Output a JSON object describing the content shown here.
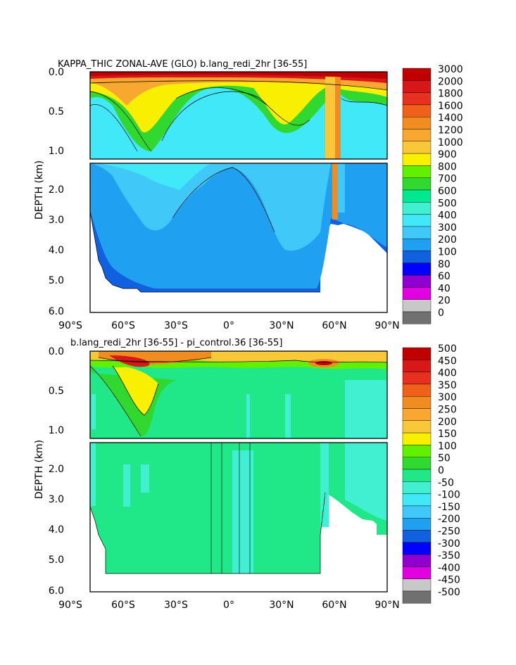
{
  "chart_data": [
    {
      "type": "heatmap",
      "title": "KAPPA_THIC ZONAL-AVE (GLO) b.lang_redi_2hr [36-55]",
      "ylabel": "DEPTH (km)",
      "x_ticks": [
        "90°S",
        "60°S",
        "30°S",
        "0°",
        "30°N",
        "60°N",
        "90°N"
      ],
      "y_ticks_upper": [
        "0.0",
        "0.5",
        "1.0"
      ],
      "y_ticks_lower": [
        "2.0",
        "3.0",
        "4.0",
        "5.0",
        "6.0"
      ],
      "xlim": [
        -90,
        90
      ],
      "ylim": [
        0,
        6
      ],
      "y_break_km": 1.1,
      "colorbar": {
        "labels": [
          "3000",
          "2000",
          "1800",
          "1600",
          "1400",
          "1200",
          "1000",
          "900",
          "800",
          "700",
          "600",
          "500",
          "400",
          "300",
          "200",
          "100",
          "80",
          "60",
          "40",
          "20",
          "0"
        ],
        "colors": [
          "#c00000",
          "#d81818",
          "#e83020",
          "#f06018",
          "#f08c20",
          "#f8a830",
          "#f8c838",
          "#f8f000",
          "#60f000",
          "#30d830",
          "#00e890",
          "#40f0d0",
          "#40e8f8",
          "#40c8f8",
          "#20a0f0",
          "#1060e0",
          "#0000ff",
          "#9000d0",
          "#e000e0",
          "#c8c8c8",
          "#707070"
        ]
      }
    },
    {
      "type": "heatmap",
      "title": "b.lang_redi_2hr [36-55] - pi_control.36 [36-55]",
      "ylabel": "DEPTH (km)",
      "x_ticks": [
        "90°S",
        "60°S",
        "30°S",
        "0°",
        "30°N",
        "60°N",
        "90°N"
      ],
      "y_ticks_upper": [
        "0.0",
        "0.5",
        "1.0"
      ],
      "y_ticks_lower": [
        "2.0",
        "3.0",
        "4.0",
        "5.0",
        "6.0"
      ],
      "xlim": [
        -90,
        90
      ],
      "ylim": [
        0,
        6
      ],
      "y_break_km": 1.1,
      "colorbar": {
        "labels": [
          "500",
          "450",
          "400",
          "350",
          "300",
          "250",
          "200",
          "150",
          "100",
          "50",
          "0",
          "-50",
          "-100",
          "-150",
          "-200",
          "-250",
          "-300",
          "-350",
          "-400",
          "-450",
          "-500"
        ],
        "colors": [
          "#c00000",
          "#d81818",
          "#e83020",
          "#f06018",
          "#f08c20",
          "#f8a830",
          "#f8c838",
          "#f8f000",
          "#60f000",
          "#30d830",
          "#20e888",
          "#40f0d0",
          "#40e8f8",
          "#40c8f8",
          "#20a0f0",
          "#1060e0",
          "#0000ff",
          "#9000d0",
          "#e000e0",
          "#c8c8c8",
          "#707070"
        ]
      }
    }
  ]
}
